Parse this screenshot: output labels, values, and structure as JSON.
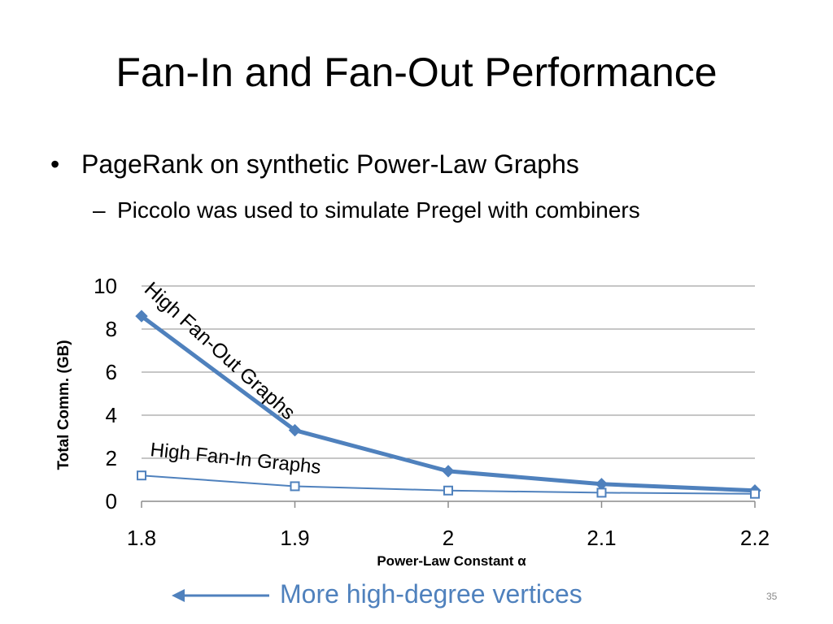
{
  "slide": {
    "title": "Fan-In and Fan-Out Performance",
    "bullet": "PageRank on synthetic Power-Law Graphs",
    "bullet_marker": "•",
    "subbullet": "Piccolo was used to simulate Pregel with combiners",
    "subbullet_marker": "–",
    "footer_text": "More high-degree vertices",
    "page_number": "35",
    "accent_color": "#4f81bd"
  },
  "chart_data": {
    "type": "line",
    "x": [
      1.8,
      1.9,
      2.0,
      2.1,
      2.2
    ],
    "x_tick_labels": [
      "1.8",
      "1.9",
      "2",
      "2.1",
      "2.2"
    ],
    "xlabel": "Power-Law Constant α",
    "ylabel": "Total Comm. (GB)",
    "ylim": [
      0,
      10
    ],
    "y_ticks": [
      0,
      2,
      4,
      6,
      8,
      10
    ],
    "grid": true,
    "series": [
      {
        "name": "High Fan-Out Graphs",
        "values": [
          8.6,
          3.3,
          1.4,
          0.8,
          0.5
        ],
        "marker": "diamond-filled",
        "color": "#4f81bd"
      },
      {
        "name": "High Fan-In Graphs",
        "values": [
          1.2,
          0.7,
          0.5,
          0.4,
          0.35
        ],
        "marker": "square-open",
        "color": "#4f81bd"
      }
    ]
  }
}
